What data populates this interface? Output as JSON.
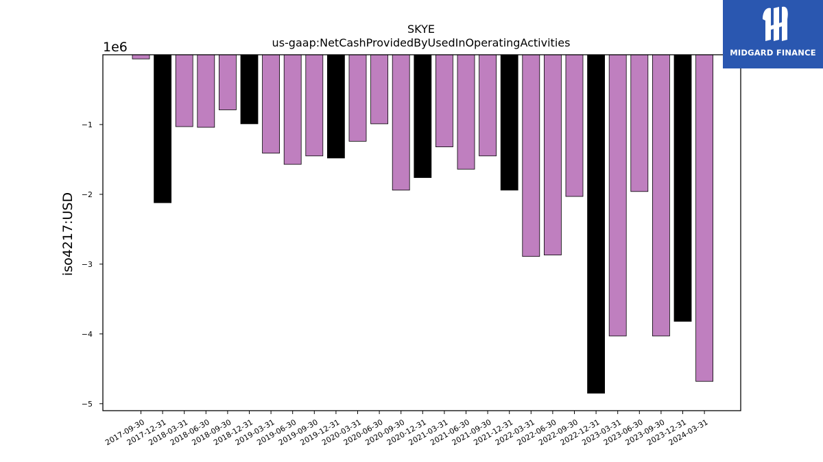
{
  "chart_data": {
    "type": "bar",
    "title": "SKYE",
    "subtitle": "us-gaap:NetCashProvidedByUsedInOperatingActivities",
    "ylabel": "iso4217:USD",
    "offset_label": "1e6",
    "ylim": [
      -5.1,
      0
    ],
    "yticks": [
      {
        "value": -1,
        "label": "−1"
      },
      {
        "value": -2,
        "label": "−2"
      },
      {
        "value": -3,
        "label": "−3"
      },
      {
        "value": -4,
        "label": "−4"
      },
      {
        "value": -5,
        "label": "−5"
      }
    ],
    "categories": [
      "2017-09-30",
      "2017-12-31",
      "2018-03-31",
      "2018-06-30",
      "2018-09-30",
      "2018-12-31",
      "2019-03-31",
      "2019-06-30",
      "2019-09-30",
      "2019-12-31",
      "2020-03-31",
      "2020-06-30",
      "2020-09-30",
      "2020-12-31",
      "2021-03-31",
      "2021-06-30",
      "2021-09-30",
      "2021-12-31",
      "2022-03-31",
      "2022-06-30",
      "2022-09-30",
      "2022-12-31",
      "2023-03-31",
      "2023-06-30",
      "2023-09-30",
      "2023-12-31",
      "2024-03-31"
    ],
    "values": [
      -0.06,
      -2.12,
      -1.03,
      -1.04,
      -0.79,
      -0.99,
      -1.41,
      -1.57,
      -1.45,
      -1.48,
      -1.24,
      -0.99,
      -1.94,
      -1.76,
      -1.32,
      -1.64,
      -1.45,
      -1.94,
      -2.89,
      -2.87,
      -2.03,
      -4.85,
      -4.03,
      -1.96,
      -4.03,
      -3.82,
      -4.68
    ],
    "year_end": [
      false,
      true,
      false,
      false,
      false,
      true,
      false,
      false,
      false,
      true,
      false,
      false,
      false,
      true,
      false,
      false,
      false,
      true,
      false,
      false,
      false,
      true,
      false,
      false,
      false,
      true,
      false
    ],
    "colors": {
      "quarter": "#bf7fbf",
      "year_end": "#000000",
      "edge": "#000000"
    }
  },
  "logo": {
    "text": "MIDGARD FINANCE",
    "color": "#2a57b0"
  }
}
